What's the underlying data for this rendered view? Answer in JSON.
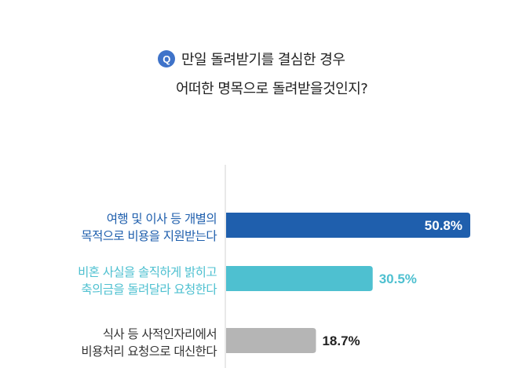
{
  "question": {
    "badge": "Q",
    "line1": "만일 돌려받기를 결심한 경우",
    "line2": "어떠한 명목으로 돌려받을것인지?"
  },
  "colors": {
    "badge": "#3f73c9",
    "axis": "#d3d3d3"
  },
  "chart_data": {
    "type": "bar",
    "orientation": "horizontal",
    "unit": "%",
    "categories": [
      [
        "여행 및 이사 등 개별의",
        "목적으로 비용을 지원받는다"
      ],
      [
        "비혼 사실을 솔직하게 밝히고",
        "축의금을 돌려달라 요청한다"
      ],
      [
        "식사 등 사적인자리에서",
        "비용처리 요청으로 대신한다"
      ]
    ],
    "values": [
      50.8,
      30.5,
      18.7
    ],
    "value_labels": [
      "50.8%",
      "30.5%",
      "18.7%"
    ],
    "bar_colors": [
      "#1f5fad",
      "#4ec0d0",
      "#b5b5b5"
    ],
    "label_colors": [
      "#1f5fad",
      "#4ec0d0",
      "#333333"
    ],
    "value_label_colors": [
      "#ffffff",
      "#4ec0d0",
      "#222222"
    ],
    "value_label_inside": [
      true,
      false,
      false
    ],
    "xlim": [
      0,
      55
    ]
  }
}
